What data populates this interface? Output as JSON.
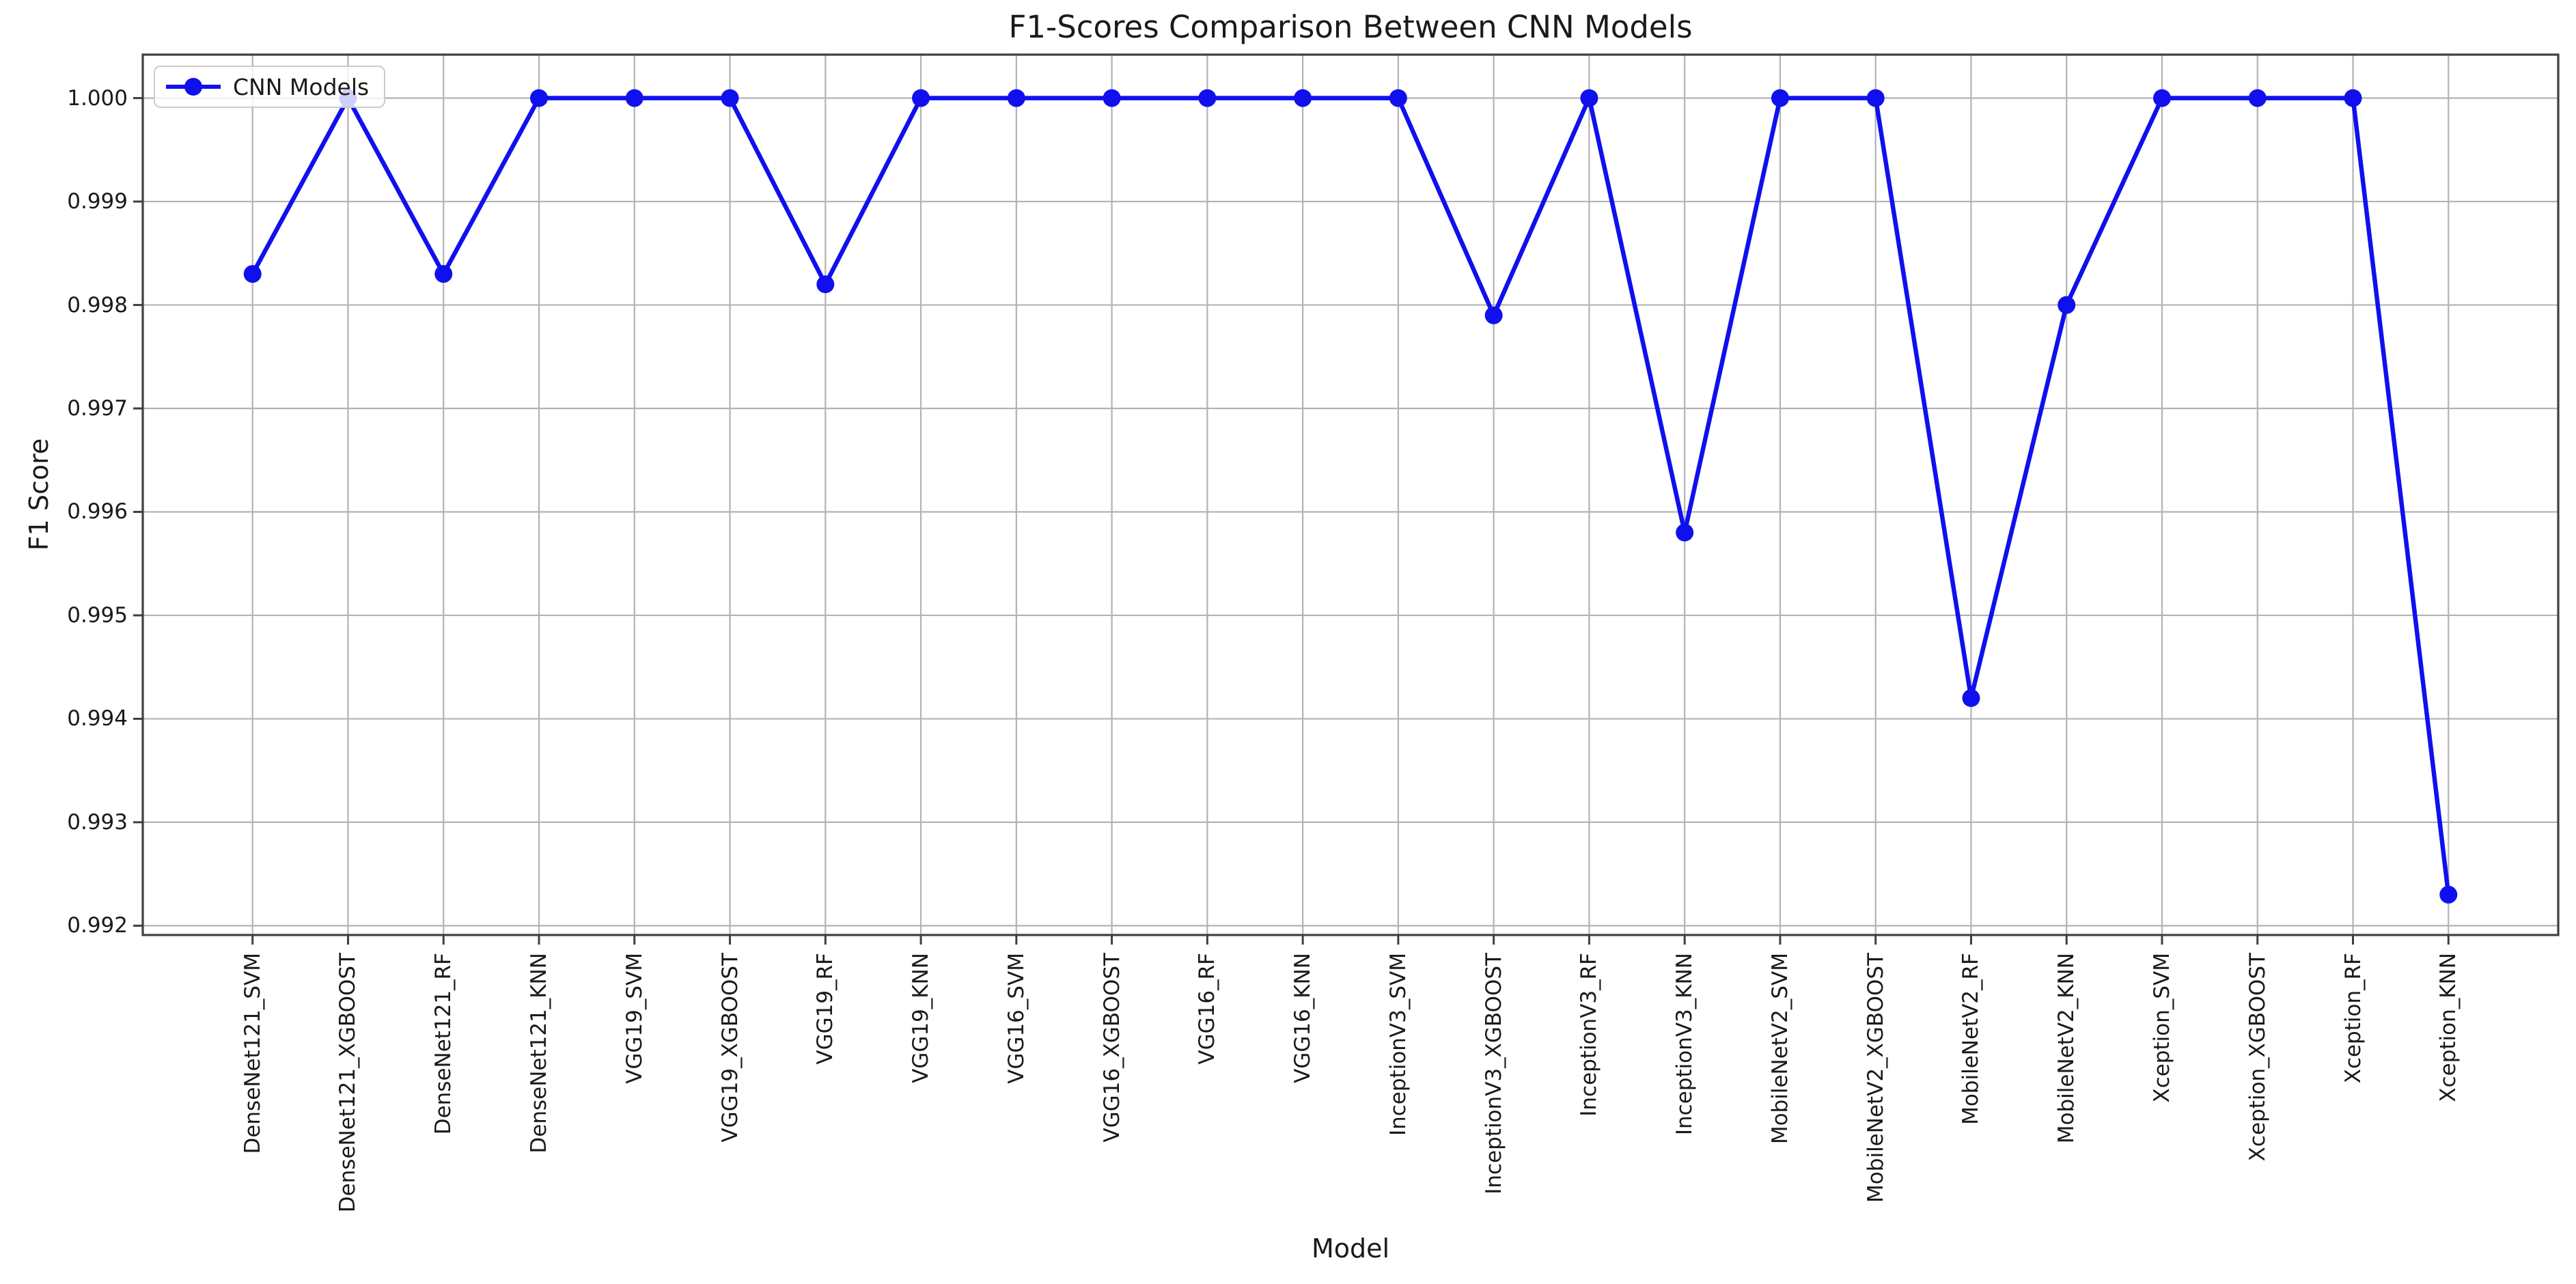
{
  "chart_data": {
    "type": "line",
    "title": "F1-Scores Comparison Between CNN Models",
    "xlabel": "Model",
    "ylabel": "F1 Score",
    "legend_label": "CNN Models",
    "legend_position": "upper left",
    "grid": true,
    "categories": [
      "DenseNet121_SVM",
      "DenseNet121_XGBOOST",
      "DenseNet121_RF",
      "DenseNet121_KNN",
      "VGG19_SVM",
      "VGG19_XGBOOST",
      "VGG19_RF",
      "VGG19_KNN",
      "VGG16_SVM",
      "VGG16_XGBOOST",
      "VGG16_RF",
      "VGG16_KNN",
      "InceptionV3_SVM",
      "InceptionV3_XGBOOST",
      "InceptionV3_RF",
      "InceptionV3_KNN",
      "MobileNetV2_SVM",
      "MobileNetV2_XGBOOST",
      "MobileNetV2_RF",
      "MobileNetV2_KNN",
      "Xception_SVM",
      "Xception_XGBOOST",
      "Xception_RF",
      "Xception_KNN"
    ],
    "values": [
      0.9983,
      1.0,
      0.9983,
      1.0,
      1.0,
      1.0,
      0.9982,
      1.0,
      1.0,
      1.0,
      1.0,
      1.0,
      1.0,
      0.9979,
      1.0,
      0.9958,
      1.0,
      1.0,
      0.9942,
      0.998,
      1.0,
      1.0,
      1.0,
      0.9923
    ],
    "yticks": [
      0.992,
      0.993,
      0.994,
      0.995,
      0.996,
      0.997,
      0.998,
      0.999,
      1.0
    ],
    "ylim": [
      0.99191,
      1.00042
    ],
    "line_color": "#1010ee",
    "marker": "o",
    "grid_color": "#b3b3b3",
    "spine_color": "#3f3f3f",
    "text_color": "#1a1a1a"
  }
}
